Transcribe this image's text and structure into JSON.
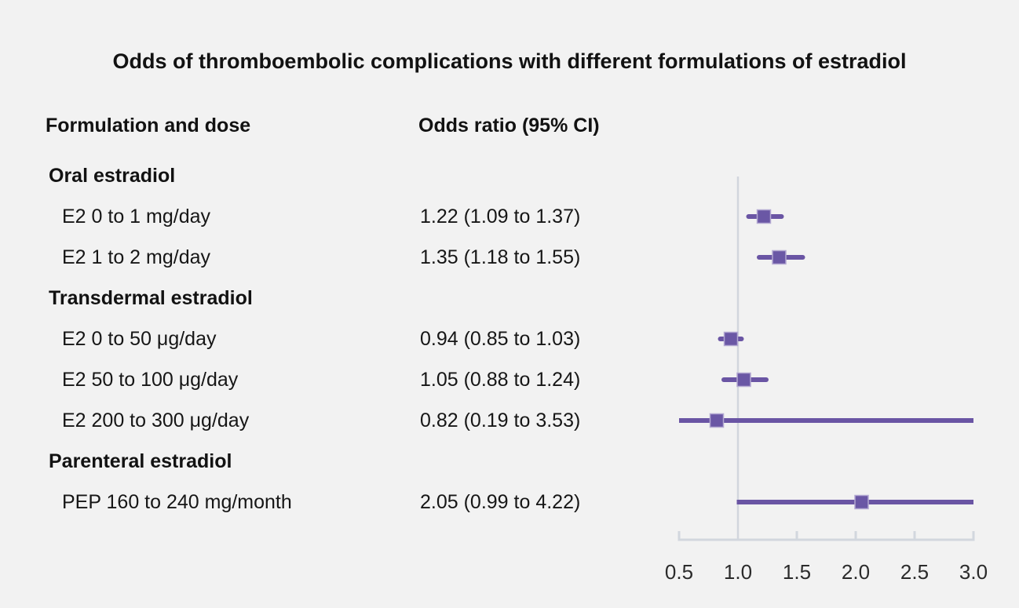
{
  "title": "Odds of thromboembolic complications with different formulations of estradiol",
  "columns": {
    "formulation": "Formulation and dose",
    "odds": "Odds ratio (95% CI)"
  },
  "colors": {
    "background": "#f2f2f2",
    "marker_fill": "#6a57a5",
    "marker_border": "#b3a8d2",
    "ci_line": "#6a55a4",
    "axis_line": "#d2d7de",
    "reference_line": "#d2d6dd",
    "text": "#121212",
    "tick_label": "#2b2b2b"
  },
  "chart_data": {
    "type": "scatter",
    "subtype": "forest",
    "title": "Odds of thromboembolic complications with different formulations of estradiol",
    "xlabel": "",
    "ylabel": "",
    "xlim": [
      0.5,
      3.0
    ],
    "xticks": [
      0.5,
      1.0,
      1.5,
      2.0,
      2.5,
      3.0
    ],
    "reference_line": 1.0,
    "grid": false,
    "legend": false,
    "rows": [
      {
        "type": "group",
        "label": "Oral estradiol"
      },
      {
        "type": "item",
        "label": "E2 0 to 1 mg/day",
        "or": 1.22,
        "ci_low": 1.09,
        "ci_high": 1.37,
        "or_text": "1.22 (1.09 to 1.37)"
      },
      {
        "type": "item",
        "label": "E2 1 to 2 mg/day",
        "or": 1.35,
        "ci_low": 1.18,
        "ci_high": 1.55,
        "or_text": "1.35 (1.18 to 1.55)"
      },
      {
        "type": "group",
        "label": "Transdermal estradiol"
      },
      {
        "type": "item",
        "label": "E2 0 to 50 μg/day",
        "or": 0.94,
        "ci_low": 0.85,
        "ci_high": 1.03,
        "or_text": "0.94 (0.85 to 1.03)"
      },
      {
        "type": "item",
        "label": "E2 50 to 100 μg/day",
        "or": 1.05,
        "ci_low": 0.88,
        "ci_high": 1.24,
        "or_text": "1.05 (0.88 to 1.24)"
      },
      {
        "type": "item",
        "label": "E2 200 to 300 μg/day",
        "or": 0.82,
        "ci_low": 0.19,
        "ci_high": 3.53,
        "or_text": "0.82 (0.19 to 3.53)"
      },
      {
        "type": "group",
        "label": "Parenteral estradiol"
      },
      {
        "type": "item",
        "label": "PEP 160 to 240 mg/month",
        "or": 2.05,
        "ci_low": 0.99,
        "ci_high": 4.22,
        "or_text": "2.05 (0.99 to 4.22)"
      }
    ]
  }
}
